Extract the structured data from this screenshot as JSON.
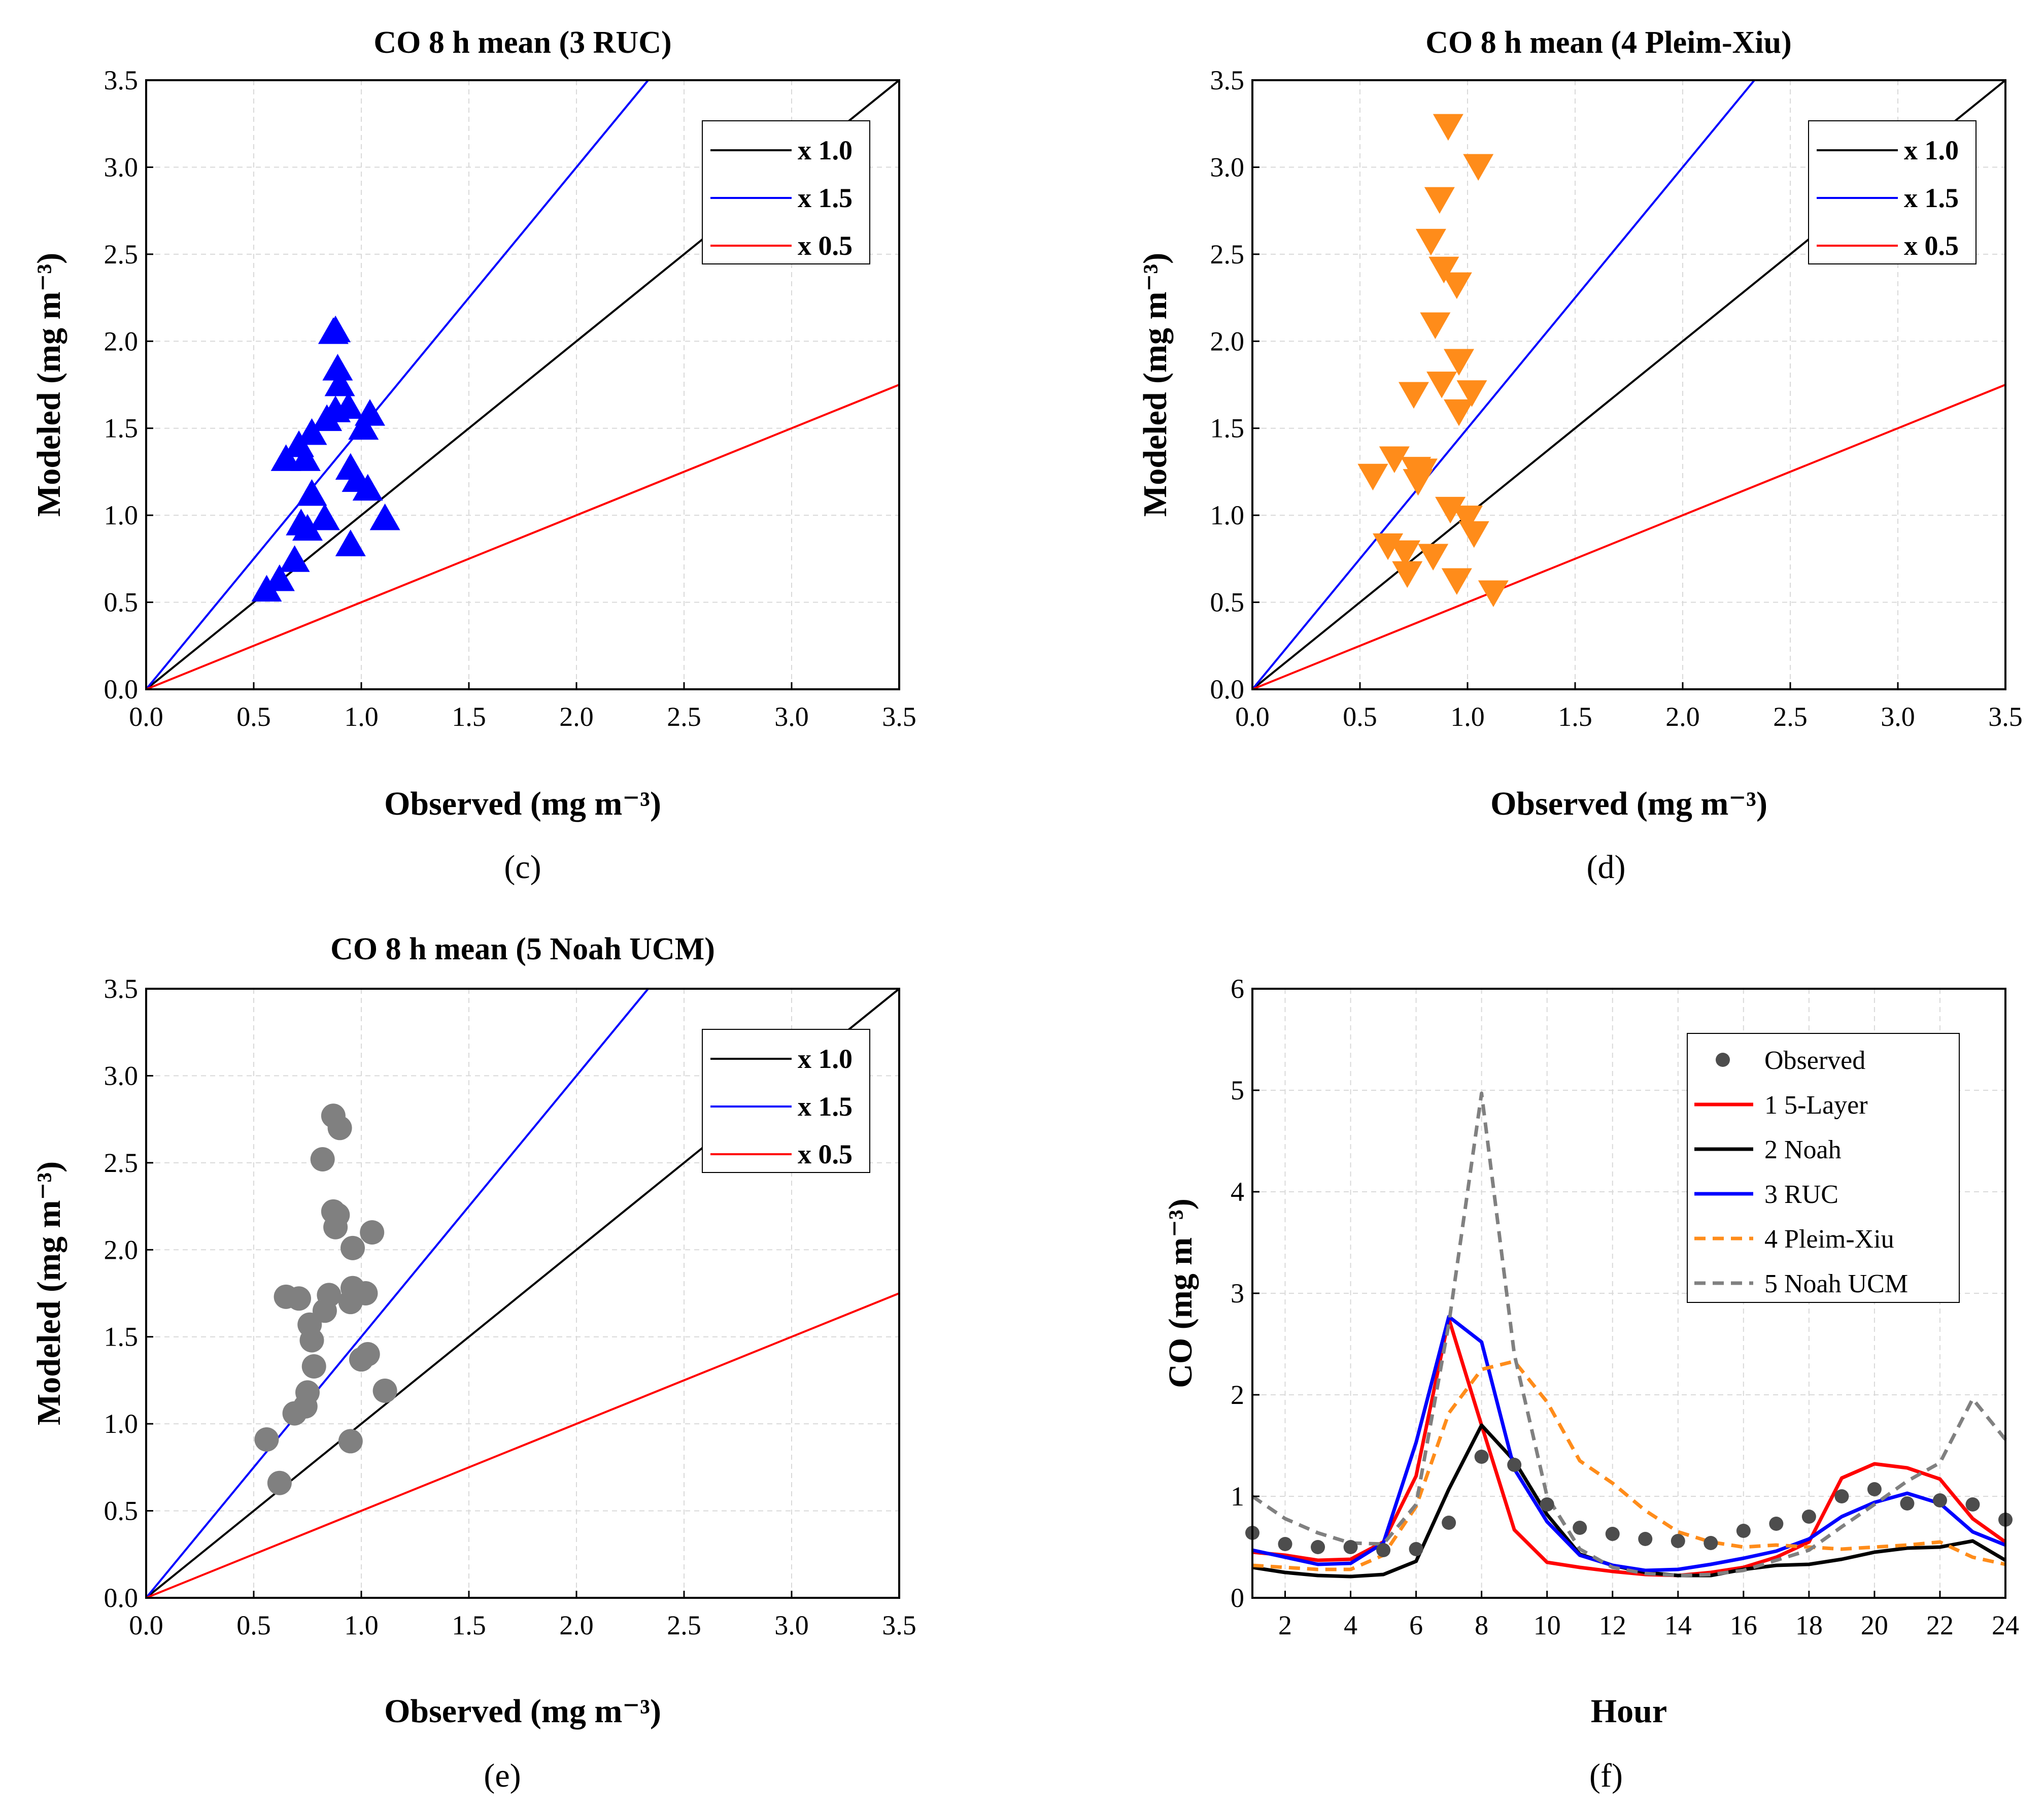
{
  "panels": {
    "c": {
      "label": "(c)",
      "label_letter": "c"
    },
    "d": {
      "label": "(d)",
      "label_letter": "d"
    },
    "e": {
      "label": "(e)",
      "label_letter": "e"
    },
    "f": {
      "label": "(f)",
      "label_letter": "f"
    }
  },
  "colors": {
    "black": "#000000",
    "blue": "#0000ff",
    "red": "#ff0000",
    "orange": "#ff8c1a",
    "gray": "#808080",
    "dark_gray": "#505050",
    "obs_dot": "#4d4d4d",
    "model_red": "#ff0000",
    "model_black": "#000000",
    "model_blue": "#0000ff",
    "model_orange": "#ff8c1a",
    "model_gray": "#808080"
  },
  "chart_data": [
    {
      "id": "c",
      "type": "scatter",
      "title": "CO 8 h mean (3 RUC)",
      "xlabel": "Observed (mg m⁻³)",
      "ylabel": "Modeled (mg m⁻³)",
      "xlim": [
        0,
        3.5
      ],
      "ylim": [
        0,
        3.5
      ],
      "xticks": [
        "0.0",
        "0.5",
        "1.0",
        "1.5",
        "2.0",
        "2.5",
        "3.0",
        "3.5"
      ],
      "yticks": [
        "0.0",
        "0.5",
        "1.0",
        "1.5",
        "2.0",
        "2.5",
        "3.0",
        "3.5"
      ],
      "marker": "triangle-up",
      "marker_color": "#0000ff",
      "lines": [
        {
          "name": "x 1.0",
          "slope": 1.0,
          "color": "#000000"
        },
        {
          "name": "x 1.5",
          "slope": 1.5,
          "color": "#0000ff"
        },
        {
          "name": "x 0.5",
          "slope": 0.5,
          "color": "#ff0000"
        }
      ],
      "points": [
        [
          0.56,
          0.57
        ],
        [
          0.62,
          0.63
        ],
        [
          0.65,
          1.32
        ],
        [
          0.69,
          0.74
        ],
        [
          0.71,
          1.4
        ],
        [
          0.72,
          0.95
        ],
        [
          0.74,
          1.32
        ],
        [
          0.75,
          0.92
        ],
        [
          0.77,
          1.47
        ],
        [
          0.77,
          1.12
        ],
        [
          0.83,
          0.98
        ],
        [
          0.84,
          1.55
        ],
        [
          0.87,
          2.05
        ],
        [
          0.88,
          1.6
        ],
        [
          0.89,
          1.84
        ],
        [
          0.9,
          1.75
        ],
        [
          0.94,
          1.62
        ],
        [
          0.95,
          1.27
        ],
        [
          0.95,
          0.83
        ],
        [
          0.98,
          1.2
        ],
        [
          1.01,
          1.5
        ],
        [
          1.03,
          1.15
        ],
        [
          1.04,
          1.58
        ],
        [
          1.11,
          0.98
        ],
        [
          0.88,
          2.06
        ]
      ]
    },
    {
      "id": "d",
      "type": "scatter",
      "title": "CO 8 h mean (4 Pleim-Xiu)",
      "xlabel": "Observed (mg m⁻³)",
      "ylabel": "Modeled (mg m⁻³)",
      "xlim": [
        0,
        3.5
      ],
      "ylim": [
        0,
        3.5
      ],
      "xticks": [
        "0.0",
        "0.5",
        "1.0",
        "1.5",
        "2.0",
        "2.5",
        "3.0",
        "3.5"
      ],
      "yticks": [
        "0.0",
        "0.5",
        "1.0",
        "1.5",
        "2.0",
        "2.5",
        "3.0",
        "3.5"
      ],
      "marker": "triangle-down",
      "marker_color": "#ff8c1a",
      "lines": [
        {
          "name": "x 1.0",
          "slope": 1.0,
          "color": "#000000"
        },
        {
          "name": "x 1.5",
          "slope": 1.5,
          "color": "#0000ff"
        },
        {
          "name": "x 0.5",
          "slope": 0.5,
          "color": "#ff0000"
        }
      ],
      "points": [
        [
          0.56,
          1.23
        ],
        [
          0.63,
          0.83
        ],
        [
          0.66,
          1.33
        ],
        [
          0.71,
          0.79
        ],
        [
          0.72,
          0.67
        ],
        [
          0.75,
          1.7
        ],
        [
          0.76,
          1.27
        ],
        [
          0.77,
          1.2
        ],
        [
          0.79,
          1.26
        ],
        [
          0.83,
          2.58
        ],
        [
          0.84,
          0.77
        ],
        [
          0.85,
          2.1
        ],
        [
          0.87,
          2.82
        ],
        [
          0.88,
          1.76
        ],
        [
          0.89,
          2.42
        ],
        [
          0.91,
          3.24
        ],
        [
          0.92,
          1.04
        ],
        [
          0.95,
          2.33
        ],
        [
          0.95,
          0.63
        ],
        [
          0.96,
          1.89
        ],
        [
          0.96,
          1.6
        ],
        [
          1.0,
          0.99
        ],
        [
          1.02,
          1.71
        ],
        [
          1.03,
          0.9
        ],
        [
          1.05,
          3.01
        ],
        [
          1.12,
          0.56
        ]
      ]
    },
    {
      "id": "e",
      "type": "scatter",
      "title": "CO 8 h mean (5 Noah UCM)",
      "xlabel": "Observed (mg m⁻³)",
      "ylabel": "Modeled (mg m⁻³)",
      "xlim": [
        0,
        3.5
      ],
      "ylim": [
        0,
        3.5
      ],
      "xticks": [
        "0.0",
        "0.5",
        "1.0",
        "1.5",
        "2.0",
        "2.5",
        "3.0",
        "3.5"
      ],
      "yticks": [
        "0.0",
        "0.5",
        "1.0",
        "1.5",
        "2.0",
        "2.5",
        "3.0",
        "3.5"
      ],
      "marker": "circle",
      "marker_color": "#808080",
      "lines": [
        {
          "name": "x 1.0",
          "slope": 1.0,
          "color": "#000000"
        },
        {
          "name": "x 1.5",
          "slope": 1.5,
          "color": "#0000ff"
        },
        {
          "name": "x 0.5",
          "slope": 0.5,
          "color": "#ff0000"
        }
      ],
      "points": [
        [
          0.56,
          0.91
        ],
        [
          0.62,
          0.66
        ],
        [
          0.65,
          1.73
        ],
        [
          0.69,
          1.06
        ],
        [
          0.71,
          1.72
        ],
        [
          0.74,
          1.1
        ],
        [
          0.75,
          1.18
        ],
        [
          0.76,
          1.57
        ],
        [
          0.77,
          1.48
        ],
        [
          0.78,
          1.33
        ],
        [
          0.82,
          2.52
        ],
        [
          0.83,
          1.65
        ],
        [
          0.85,
          1.74
        ],
        [
          0.87,
          2.22
        ],
        [
          0.87,
          2.77
        ],
        [
          0.88,
          2.13
        ],
        [
          0.89,
          2.2
        ],
        [
          0.9,
          2.7
        ],
        [
          0.95,
          1.7
        ],
        [
          0.95,
          0.9
        ],
        [
          0.96,
          2.01
        ],
        [
          0.96,
          1.78
        ],
        [
          1.0,
          1.37
        ],
        [
          1.02,
          1.75
        ],
        [
          1.03,
          1.4
        ],
        [
          1.05,
          2.1
        ],
        [
          1.11,
          1.19
        ]
      ]
    },
    {
      "id": "f",
      "type": "line",
      "title": "",
      "xlabel": "Hour",
      "ylabel": "CO (mg m⁻³)",
      "xlim": [
        1,
        24
      ],
      "ylim": [
        0,
        6
      ],
      "xticks": [
        "2",
        "4",
        "6",
        "8",
        "10",
        "12",
        "14",
        "16",
        "18",
        "20",
        "22",
        "24"
      ],
      "yticks": [
        "0",
        "1",
        "2",
        "3",
        "4",
        "5",
        "6"
      ],
      "x": [
        1,
        2,
        3,
        4,
        5,
        6,
        7,
        8,
        9,
        10,
        11,
        12,
        13,
        14,
        15,
        16,
        17,
        18,
        19,
        20,
        21,
        22,
        23,
        24
      ],
      "observed": {
        "name": "Observed",
        "color": "#4d4d4d",
        "values": [
          0.64,
          0.53,
          0.5,
          0.5,
          0.47,
          0.48,
          0.74,
          1.39,
          1.31,
          0.92,
          0.69,
          0.63,
          0.58,
          0.56,
          0.54,
          0.66,
          0.73,
          0.8,
          1.0,
          1.07,
          0.93,
          0.96,
          0.92,
          0.77
        ]
      },
      "series": [
        {
          "name": "1 5-Layer",
          "color": "#ff0000",
          "dash": "solid",
          "values": [
            0.45,
            0.42,
            0.37,
            0.38,
            0.55,
            1.2,
            2.75,
            1.7,
            0.67,
            0.35,
            0.3,
            0.26,
            0.23,
            0.22,
            0.25,
            0.3,
            0.4,
            0.55,
            1.18,
            1.32,
            1.28,
            1.17,
            0.78,
            0.55
          ]
        },
        {
          "name": "2 Noah",
          "color": "#000000",
          "dash": "solid",
          "values": [
            0.3,
            0.25,
            0.22,
            0.21,
            0.23,
            0.36,
            1.07,
            1.7,
            1.35,
            0.82,
            0.43,
            0.32,
            0.25,
            0.22,
            0.22,
            0.28,
            0.32,
            0.33,
            0.38,
            0.45,
            0.49,
            0.5,
            0.56,
            0.37
          ]
        },
        {
          "name": "3 RUC",
          "color": "#0000ff",
          "dash": "solid",
          "values": [
            0.47,
            0.4,
            0.33,
            0.34,
            0.54,
            1.53,
            2.77,
            2.52,
            1.27,
            0.75,
            0.42,
            0.32,
            0.27,
            0.28,
            0.33,
            0.39,
            0.46,
            0.58,
            0.8,
            0.94,
            1.03,
            0.93,
            0.65,
            0.52
          ]
        },
        {
          "name": "4 Pleim-Xiu",
          "color": "#ff8c1a",
          "dash": "dashed",
          "values": [
            0.32,
            0.3,
            0.28,
            0.28,
            0.42,
            0.9,
            1.82,
            2.25,
            2.33,
            1.93,
            1.35,
            1.13,
            0.86,
            0.65,
            0.55,
            0.5,
            0.52,
            0.5,
            0.48,
            0.5,
            0.52,
            0.55,
            0.4,
            0.33
          ]
        },
        {
          "name": "5 Noah UCM",
          "color": "#808080",
          "dash": "dashed",
          "values": [
            1.0,
            0.78,
            0.64,
            0.54,
            0.53,
            0.92,
            2.7,
            4.97,
            2.4,
            1.0,
            0.48,
            0.3,
            0.24,
            0.22,
            0.23,
            0.27,
            0.37,
            0.47,
            0.7,
            0.92,
            1.15,
            1.33,
            1.96,
            1.56
          ]
        }
      ]
    }
  ]
}
